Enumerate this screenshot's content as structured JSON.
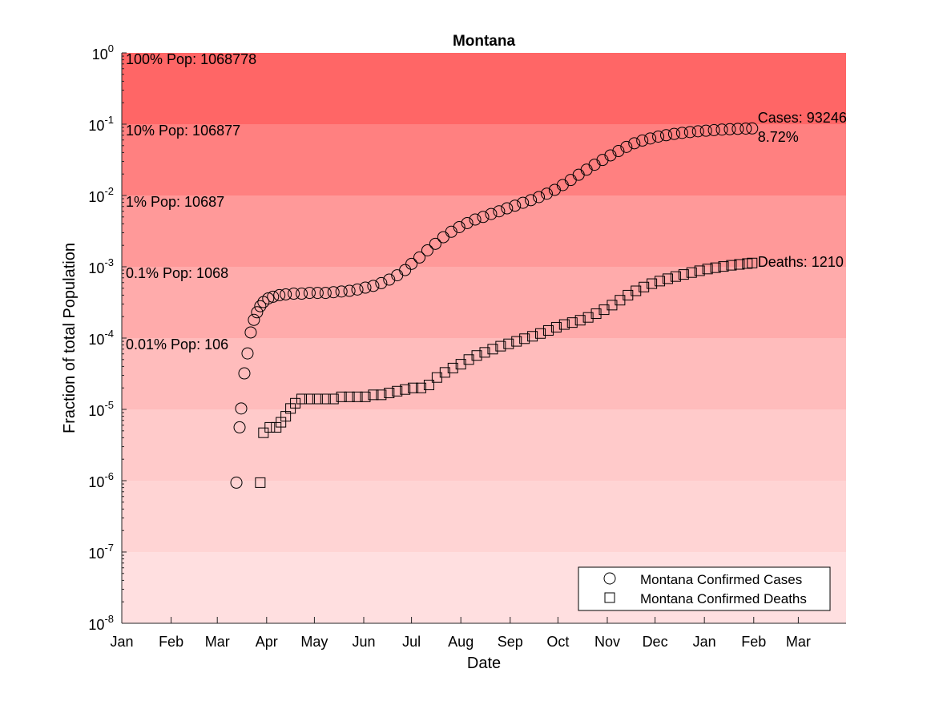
{
  "chart_data": {
    "type": "scatter",
    "title": "Montana",
    "xlabel": "Date",
    "ylabel": "Fraction of total Population",
    "yscale": "log",
    "ylim": [
      1e-08,
      1
    ],
    "x_tick_labels": [
      "Jan",
      "Feb",
      "Mar",
      "Apr",
      "May",
      "Jun",
      "Jul",
      "Aug",
      "Sep",
      "Oct",
      "Nov",
      "Dec",
      "Jan",
      "Feb",
      "Mar"
    ],
    "y_ticks": [
      {
        "base": "10",
        "exp": "0"
      },
      {
        "base": "10",
        "exp": "-1"
      },
      {
        "base": "10",
        "exp": "-2"
      },
      {
        "base": "10",
        "exp": "-3"
      },
      {
        "base": "10",
        "exp": "-4"
      },
      {
        "base": "10",
        "exp": "-5"
      },
      {
        "base": "10",
        "exp": "-6"
      },
      {
        "base": "10",
        "exp": "-7"
      },
      {
        "base": "10",
        "exp": "-8"
      }
    ],
    "bands": [
      {
        "lower": 0.1,
        "upper": 1,
        "color": "#ff6666",
        "label": "100% Pop: 1068778"
      },
      {
        "lower": 0.01,
        "upper": 0.1,
        "color": "#ff8080",
        "label": "10% Pop: 106877"
      },
      {
        "lower": 0.001,
        "upper": 0.01,
        "color": "#ff9999",
        "label": "1% Pop: 10687"
      },
      {
        "lower": 0.0001,
        "upper": 0.001,
        "color": "#ffabab",
        "label": "0.1% Pop: 1068"
      },
      {
        "lower": 1e-05,
        "upper": 0.0001,
        "color": "#ffbcbc",
        "label": "0.01% Pop: 106"
      },
      {
        "lower": 1e-06,
        "upper": 1e-05,
        "color": "#ffcaca",
        "label": ""
      },
      {
        "lower": 1e-07,
        "upper": 1e-06,
        "color": "#ffd4d4",
        "label": ""
      },
      {
        "lower": 1e-08,
        "upper": 1e-07,
        "color": "#ffdfe0",
        "label": ""
      }
    ],
    "series": [
      {
        "name": "Montana Confirmed Cases",
        "marker": "circle",
        "annotation": [
          "Cases: 93246",
          "8.72%"
        ],
        "points": [
          [
            "2020-03-13",
            9.4e-07
          ],
          [
            "2020-03-15",
            5.6e-06
          ],
          [
            "2020-03-16",
            1.03e-05
          ],
          [
            "2020-03-18",
            3.2e-05
          ],
          [
            "2020-03-20",
            6.1e-05
          ],
          [
            "2020-03-22",
            0.00012
          ],
          [
            "2020-03-24",
            0.00018
          ],
          [
            "2020-03-26",
            0.00023
          ],
          [
            "2020-03-28",
            0.00028
          ],
          [
            "2020-03-30",
            0.00032
          ],
          [
            "2020-04-02",
            0.00036
          ],
          [
            "2020-04-05",
            0.00038
          ],
          [
            "2020-04-09",
            0.0004
          ],
          [
            "2020-04-13",
            0.00041
          ],
          [
            "2020-04-18",
            0.00042
          ],
          [
            "2020-04-23",
            0.00042
          ],
          [
            "2020-04-28",
            0.00043
          ],
          [
            "2020-05-03",
            0.00043
          ],
          [
            "2020-05-08",
            0.00043
          ],
          [
            "2020-05-13",
            0.00044
          ],
          [
            "2020-05-18",
            0.00045
          ],
          [
            "2020-05-23",
            0.00046
          ],
          [
            "2020-05-28",
            0.00048
          ],
          [
            "2020-06-02",
            0.00051
          ],
          [
            "2020-06-07",
            0.00054
          ],
          [
            "2020-06-12",
            0.00059
          ],
          [
            "2020-06-17",
            0.00066
          ],
          [
            "2020-06-22",
            0.00076
          ],
          [
            "2020-06-27",
            0.0009
          ],
          [
            "2020-07-01",
            0.0011
          ],
          [
            "2020-07-06",
            0.00135
          ],
          [
            "2020-07-11",
            0.0017
          ],
          [
            "2020-07-16",
            0.0021
          ],
          [
            "2020-07-21",
            0.0026
          ],
          [
            "2020-07-26",
            0.0031
          ],
          [
            "2020-07-31",
            0.0036
          ],
          [
            "2020-08-05",
            0.0041
          ],
          [
            "2020-08-10",
            0.0046
          ],
          [
            "2020-08-15",
            0.005
          ],
          [
            "2020-08-20",
            0.0055
          ],
          [
            "2020-08-25",
            0.006
          ],
          [
            "2020-08-30",
            0.0066
          ],
          [
            "2020-09-04",
            0.0072
          ],
          [
            "2020-09-09",
            0.0079
          ],
          [
            "2020-09-14",
            0.0086
          ],
          [
            "2020-09-19",
            0.0095
          ],
          [
            "2020-09-24",
            0.0106
          ],
          [
            "2020-09-29",
            0.012
          ],
          [
            "2020-10-04",
            0.014
          ],
          [
            "2020-10-09",
            0.0165
          ],
          [
            "2020-10-14",
            0.0195
          ],
          [
            "2020-10-19",
            0.023
          ],
          [
            "2020-10-24",
            0.027
          ],
          [
            "2020-10-29",
            0.0315
          ],
          [
            "2020-11-03",
            0.0365
          ],
          [
            "2020-11-08",
            0.042
          ],
          [
            "2020-11-13",
            0.048
          ],
          [
            "2020-11-18",
            0.054
          ],
          [
            "2020-11-23",
            0.059
          ],
          [
            "2020-11-28",
            0.063
          ],
          [
            "2020-12-03",
            0.067
          ],
          [
            "2020-12-08",
            0.07
          ],
          [
            "2020-12-13",
            0.073
          ],
          [
            "2020-12-18",
            0.0755
          ],
          [
            "2020-12-23",
            0.0775
          ],
          [
            "2020-12-28",
            0.0795
          ],
          [
            "2021-01-02",
            0.081
          ],
          [
            "2021-01-07",
            0.0825
          ],
          [
            "2021-01-12",
            0.084
          ],
          [
            "2021-01-17",
            0.085
          ],
          [
            "2021-01-22",
            0.086
          ],
          [
            "2021-01-27",
            0.0868
          ],
          [
            "2021-01-31",
            0.0872
          ]
        ]
      },
      {
        "name": "Montana Confirmed Deaths",
        "marker": "square",
        "annotation": [
          "Deaths: 1210"
        ],
        "points": [
          [
            "2020-03-28",
            9.4e-07
          ],
          [
            "2020-03-30",
            4.7e-06
          ],
          [
            "2020-04-03",
            5.6e-06
          ],
          [
            "2020-04-07",
            5.6e-06
          ],
          [
            "2020-04-10",
            6.6e-06
          ],
          [
            "2020-04-13",
            8e-06
          ],
          [
            "2020-04-16",
            1.03e-05
          ],
          [
            "2020-04-19",
            1.22e-05
          ],
          [
            "2020-04-23",
            1.4e-05
          ],
          [
            "2020-04-28",
            1.4e-05
          ],
          [
            "2020-05-03",
            1.4e-05
          ],
          [
            "2020-05-08",
            1.4e-05
          ],
          [
            "2020-05-13",
            1.4e-05
          ],
          [
            "2020-05-18",
            1.5e-05
          ],
          [
            "2020-05-23",
            1.5e-05
          ],
          [
            "2020-05-28",
            1.5e-05
          ],
          [
            "2020-06-02",
            1.5e-05
          ],
          [
            "2020-06-07",
            1.6e-05
          ],
          [
            "2020-06-12",
            1.6e-05
          ],
          [
            "2020-06-17",
            1.7e-05
          ],
          [
            "2020-06-22",
            1.8e-05
          ],
          [
            "2020-06-27",
            1.9e-05
          ],
          [
            "2020-07-02",
            2e-05
          ],
          [
            "2020-07-07",
            2e-05
          ],
          [
            "2020-07-12",
            2.2e-05
          ],
          [
            "2020-07-17",
            2.8e-05
          ],
          [
            "2020-07-22",
            3.3e-05
          ],
          [
            "2020-07-27",
            3.8e-05
          ],
          [
            "2020-08-01",
            4.3e-05
          ],
          [
            "2020-08-06",
            5e-05
          ],
          [
            "2020-08-11",
            5.7e-05
          ],
          [
            "2020-08-16",
            6.3e-05
          ],
          [
            "2020-08-21",
            7e-05
          ],
          [
            "2020-08-26",
            7.7e-05
          ],
          [
            "2020-08-31",
            8.3e-05
          ],
          [
            "2020-09-05",
            9e-05
          ],
          [
            "2020-09-10",
            9.8e-05
          ],
          [
            "2020-09-15",
            0.000106
          ],
          [
            "2020-09-20",
            0.000116
          ],
          [
            "2020-09-25",
            0.000128
          ],
          [
            "2020-09-30",
            0.000142
          ],
          [
            "2020-10-05",
            0.000155
          ],
          [
            "2020-10-10",
            0.000165
          ],
          [
            "2020-10-15",
            0.000178
          ],
          [
            "2020-10-20",
            0.000195
          ],
          [
            "2020-10-25",
            0.00022
          ],
          [
            "2020-10-30",
            0.00025
          ],
          [
            "2020-11-04",
            0.00029
          ],
          [
            "2020-11-09",
            0.00034
          ],
          [
            "2020-11-14",
            0.0004
          ],
          [
            "2020-11-19",
            0.00046
          ],
          [
            "2020-11-24",
            0.00052
          ],
          [
            "2020-11-29",
            0.00058
          ],
          [
            "2020-12-04",
            0.00063
          ],
          [
            "2020-12-09",
            0.00068
          ],
          [
            "2020-12-14",
            0.00073
          ],
          [
            "2020-12-19",
            0.00078
          ],
          [
            "2020-12-24",
            0.00083
          ],
          [
            "2020-12-29",
            0.00088
          ],
          [
            "2021-01-03",
            0.00093
          ],
          [
            "2021-01-08",
            0.00097
          ],
          [
            "2021-01-13",
            0.00101
          ],
          [
            "2021-01-18",
            0.00105
          ],
          [
            "2021-01-23",
            0.00108
          ],
          [
            "2021-01-28",
            0.00111
          ],
          [
            "2021-01-31",
            0.00113
          ]
        ]
      }
    ],
    "legend": {
      "position": "bottom-right",
      "entries": [
        {
          "label": "Montana Confirmed Cases",
          "marker": "circle"
        },
        {
          "label": "Montana Confirmed Deaths",
          "marker": "square"
        }
      ]
    }
  }
}
